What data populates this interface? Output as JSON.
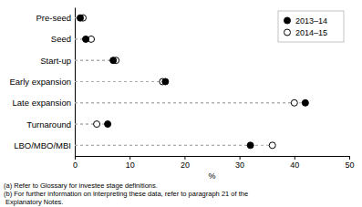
{
  "chart_data": {
    "type": "dot",
    "orientation": "horizontal",
    "categories": [
      "Pre-seed",
      "Seed",
      "Start-up",
      "Early expansion",
      "Late expansion",
      "Turnaround",
      "LBO/MBO/MBI"
    ],
    "series": [
      {
        "name": "2013–14",
        "color": "#000000",
        "marker": "circle",
        "values": [
          1.0,
          2.0,
          7.0,
          16.5,
          42.0,
          6.0,
          32.0
        ]
      },
      {
        "name": "2014–15",
        "color": "#ffffff",
        "marker": "circle",
        "values": [
          1.5,
          3.0,
          7.5,
          16.0,
          40.0,
          4.0,
          36.0
        ]
      }
    ],
    "xlim": [
      0,
      50
    ],
    "xticks": [
      0,
      10,
      20,
      30,
      40,
      50
    ],
    "xlabel": "%",
    "legend": "upper-right",
    "grid": false,
    "annotations": [
      "(a) Refer to Glossary for investee stage definitions.",
      "(b) For further information on interpreting these data, refer to paragraph 21 of the",
      " Explanatory Notes."
    ]
  }
}
